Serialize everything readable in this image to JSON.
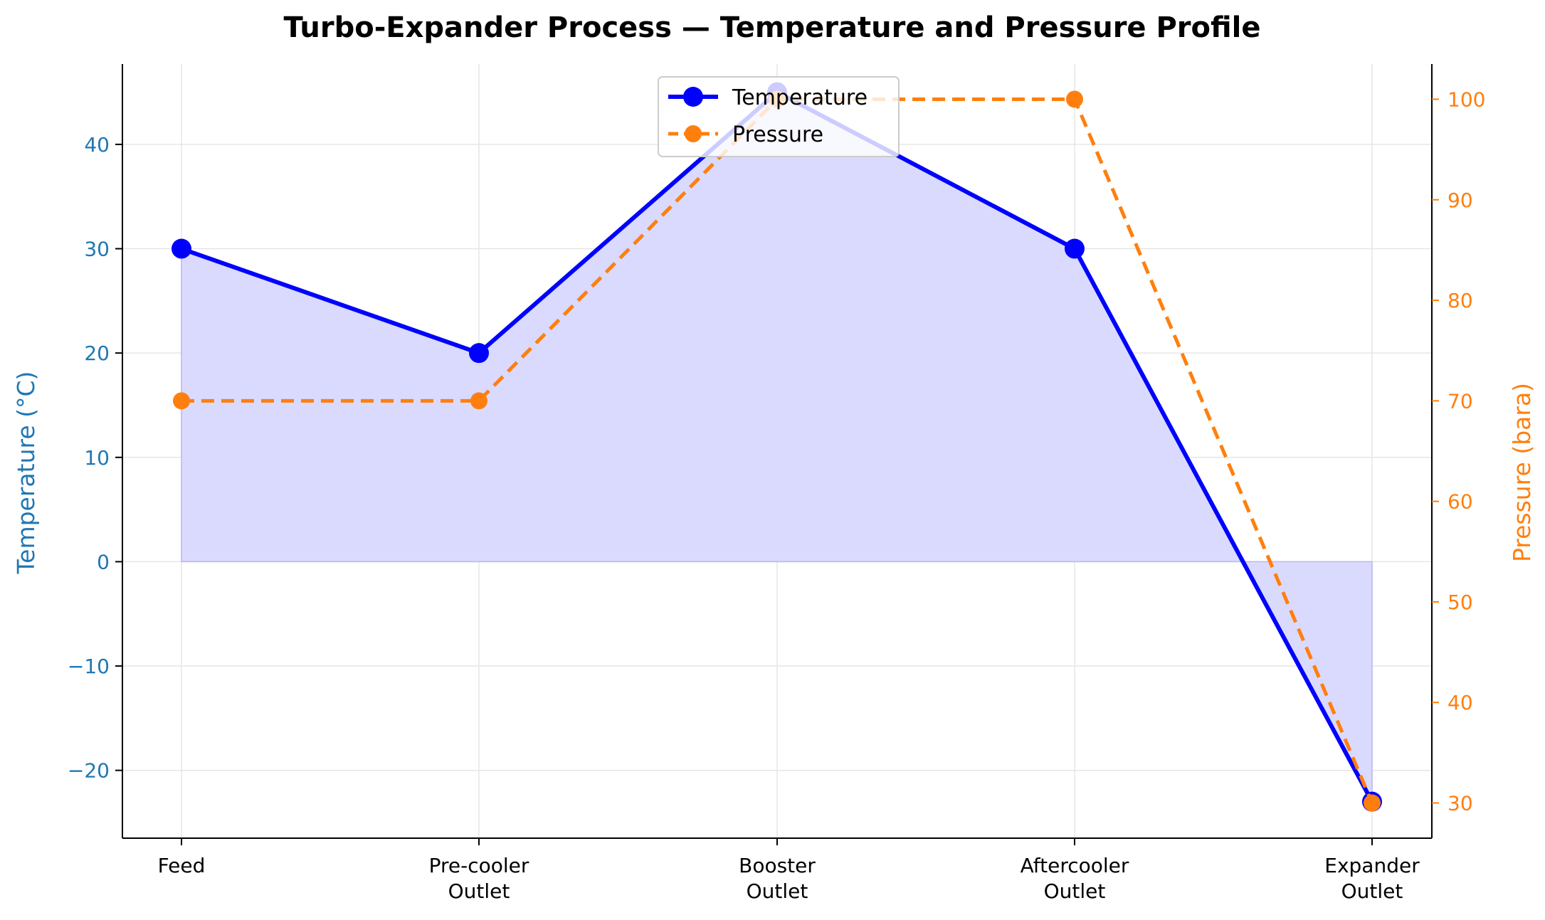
{
  "colors": {
    "temperature": "#0000ff",
    "pressure": "#ff7f0e",
    "left_axis": "#1f77b4",
    "right_axis": "#ff7f0e",
    "fill": "#d8d8ff",
    "grid": "#e6e6e6"
  },
  "chart_data": {
    "type": "line",
    "title": "Turbo-Expander Process — Temperature and Pressure Profile",
    "categories": [
      "Feed",
      "Pre-cooler\nOutlet",
      "Booster\nOutlet",
      "Aftercooler\nOutlet",
      "Expander\nOutlet"
    ],
    "xlabel": "",
    "ylabel_left": "Temperature (°C)",
    "ylabel_right": "Pressure (bara)",
    "ylim_left": [
      -26.5,
      47.7
    ],
    "ylim_right": [
      26.5,
      103.5
    ],
    "yticks_left": [
      -20,
      -10,
      0,
      10,
      20,
      30,
      40
    ],
    "yticks_left_labels": [
      "−20",
      "−10",
      "0",
      "10",
      "20",
      "30",
      "40"
    ],
    "yticks_right": [
      30,
      40,
      50,
      60,
      70,
      80,
      90,
      100
    ],
    "yticks_right_labels": [
      "30",
      "40",
      "50",
      "60",
      "70",
      "80",
      "90",
      "100"
    ],
    "grid": true,
    "legend_position": "top-center",
    "series": [
      {
        "name": "Temperature",
        "axis": "left",
        "style": "solid",
        "values": [
          30,
          20,
          45,
          30,
          -23
        ]
      },
      {
        "name": "Pressure",
        "axis": "right",
        "style": "dashed",
        "values": [
          70,
          70,
          100,
          100,
          30
        ]
      }
    ]
  }
}
